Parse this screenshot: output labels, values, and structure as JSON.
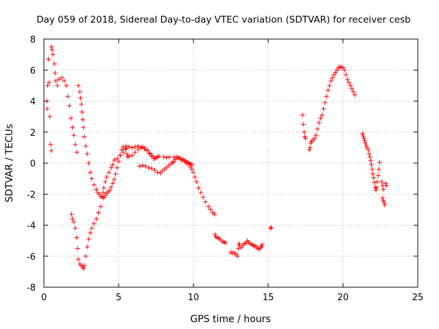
{
  "chart_data": {
    "type": "scatter",
    "title": "Day 059 of 2018, Sidereal Day-to-day VTEC variation (SDTVAR) for receiver cesb",
    "xlabel": "GPS time / hours",
    "ylabel": "SDTVAR / TECUs",
    "xlim": [
      0,
      25
    ],
    "ylim": [
      -8,
      8
    ],
    "xticks": [
      "0",
      "5",
      "10",
      "15",
      "20",
      "25"
    ],
    "yticks": [
      "-8",
      "-6",
      "-4",
      "-2",
      "0",
      "2",
      "4",
      "6",
      "8"
    ],
    "grid": true,
    "marker": "plus",
    "color": "#ff0000",
    "segments": [
      [
        [
          0.2,
          4.0
        ],
        [
          0.22,
          3.5
        ],
        [
          0.25,
          5.0
        ],
        [
          0.3,
          6.7
        ],
        [
          0.35,
          5.2
        ],
        [
          0.4,
          3.0
        ],
        [
          0.45,
          1.2
        ],
        [
          0.5,
          0.8
        ],
        [
          0.5,
          7.5
        ],
        [
          0.55,
          7.3
        ],
        [
          0.6,
          7.0
        ],
        [
          0.7,
          6.4
        ],
        [
          0.75,
          5.8
        ],
        [
          0.8,
          5.3
        ],
        [
          0.9,
          5.0
        ],
        [
          1.0,
          5.4
        ],
        [
          1.2,
          5.5
        ],
        [
          1.35,
          5.3
        ],
        [
          1.5,
          5.0
        ],
        [
          1.6,
          4.3
        ],
        [
          1.7,
          3.7
        ],
        [
          1.8,
          2.9
        ],
        [
          1.9,
          2.3
        ],
        [
          2.0,
          1.8
        ],
        [
          2.1,
          1.2
        ],
        [
          2.2,
          0.7
        ]
      ],
      [
        [
          1.85,
          -3.3
        ],
        [
          1.9,
          -3.6
        ],
        [
          2.0,
          -3.8
        ],
        [
          2.1,
          -4.2
        ],
        [
          2.2,
          -4.8
        ],
        [
          2.25,
          -5.5
        ],
        [
          2.3,
          -6.2
        ],
        [
          2.4,
          -6.5
        ],
        [
          2.5,
          -6.6
        ],
        [
          2.6,
          -6.7
        ],
        [
          2.65,
          -6.8
        ],
        [
          2.7,
          -6.6
        ],
        [
          2.8,
          -6.0
        ],
        [
          2.9,
          -5.4
        ],
        [
          3.0,
          -4.9
        ],
        [
          3.1,
          -4.5
        ],
        [
          3.2,
          -4.2
        ],
        [
          3.35,
          -3.9
        ],
        [
          3.5,
          -3.6
        ],
        [
          3.65,
          -3.2
        ],
        [
          3.8,
          -2.8
        ],
        [
          3.9,
          -2.2
        ],
        [
          3.95,
          -1.9
        ],
        [
          4.0,
          -1.6
        ],
        [
          4.1,
          -1.2
        ],
        [
          4.2,
          -0.9
        ],
        [
          4.35,
          -0.6
        ],
        [
          4.5,
          -0.3
        ],
        [
          4.6,
          -0.1
        ],
        [
          4.7,
          0.2
        ],
        [
          4.9,
          0.3
        ],
        [
          5.1,
          0.5
        ],
        [
          5.3,
          0.7
        ],
        [
          5.45,
          0.9
        ],
        [
          5.5,
          0.95
        ],
        [
          5.55,
          0.6
        ],
        [
          5.6,
          0.4
        ],
        [
          5.7,
          0.45
        ],
        [
          5.9,
          0.5
        ],
        [
          6.1,
          0.7
        ],
        [
          6.3,
          0.9
        ],
        [
          6.5,
          1.0
        ],
        [
          6.6,
          1.05
        ],
        [
          6.75,
          0.95
        ],
        [
          6.9,
          0.85
        ],
        [
          7.05,
          0.65
        ],
        [
          7.2,
          0.45
        ],
        [
          7.35,
          0.3
        ],
        [
          7.5,
          0.35
        ],
        [
          7.6,
          0.4
        ],
        [
          7.7,
          0.45
        ],
        [
          8.0,
          0.4
        ],
        [
          8.2,
          0.35
        ],
        [
          8.4,
          0.4
        ],
        [
          8.7,
          0.4
        ],
        [
          8.9,
          0.35
        ],
        [
          9.1,
          0.3
        ],
        [
          9.3,
          0.25
        ],
        [
          9.5,
          0.0
        ],
        [
          9.6,
          0.05
        ],
        [
          9.7,
          -0.1
        ],
        [
          9.8,
          -0.25
        ],
        [
          9.9,
          -0.4
        ],
        [
          10.0,
          -0.6
        ],
        [
          10.1,
          -0.9
        ],
        [
          10.2,
          -1.2
        ],
        [
          10.35,
          -1.6
        ],
        [
          10.5,
          -1.9
        ],
        [
          10.65,
          -2.2
        ],
        [
          10.8,
          -2.5
        ],
        [
          11.0,
          -2.8
        ],
        [
          11.15,
          -3.0
        ],
        [
          11.3,
          -3.2
        ],
        [
          11.4,
          -3.3
        ]
      ],
      [
        [
          2.3,
          5.0
        ],
        [
          2.4,
          4.6
        ],
        [
          2.45,
          4.2
        ],
        [
          2.5,
          3.8
        ],
        [
          2.55,
          3.3
        ],
        [
          2.6,
          2.8
        ],
        [
          2.65,
          2.3
        ],
        [
          2.7,
          1.7
        ],
        [
          2.8,
          1.1
        ],
        [
          2.9,
          0.6
        ],
        [
          3.0,
          0.0
        ],
        [
          3.1,
          -0.6
        ],
        [
          3.2,
          -1.0
        ],
        [
          3.35,
          -1.4
        ],
        [
          3.5,
          -1.7
        ],
        [
          3.6,
          -1.9
        ],
        [
          3.7,
          -2.0
        ],
        [
          3.8,
          -2.15
        ],
        [
          3.9,
          -2.2
        ],
        [
          4.0,
          -2.25
        ],
        [
          4.1,
          -2.1
        ],
        [
          4.2,
          -1.95
        ],
        [
          4.3,
          -1.85
        ],
        [
          4.4,
          -1.75
        ],
        [
          4.5,
          -1.55
        ],
        [
          4.6,
          -1.3
        ],
        [
          4.7,
          -1.05
        ],
        [
          4.8,
          -0.7
        ],
        [
          4.9,
          -0.3
        ],
        [
          5.0,
          0.1
        ],
        [
          5.1,
          0.5
        ],
        [
          5.2,
          0.85
        ],
        [
          5.3,
          1.05
        ],
        [
          5.5,
          1.1
        ],
        [
          5.7,
          1.05
        ],
        [
          5.9,
          1.0
        ],
        [
          6.1,
          1.05
        ],
        [
          6.3,
          1.1
        ],
        [
          6.5,
          1.0
        ],
        [
          6.7,
          0.95
        ],
        [
          6.9,
          0.8
        ],
        [
          7.1,
          0.6
        ],
        [
          7.25,
          0.45
        ],
        [
          7.4,
          0.3
        ]
      ],
      [
        [
          6.4,
          -0.2
        ],
        [
          6.6,
          -0.15
        ],
        [
          6.8,
          -0.2
        ],
        [
          7.0,
          -0.3
        ],
        [
          7.2,
          -0.35
        ],
        [
          7.4,
          -0.45
        ],
        [
          7.6,
          -0.6
        ],
        [
          7.8,
          -0.65
        ],
        [
          7.9,
          -0.5
        ],
        [
          8.05,
          -0.4
        ],
        [
          8.2,
          -0.3
        ],
        [
          8.35,
          -0.15
        ],
        [
          8.5,
          -0.05
        ],
        [
          8.6,
          0.05
        ],
        [
          8.7,
          0.1
        ],
        [
          8.8,
          0.25
        ],
        [
          8.9,
          0.4
        ],
        [
          9.0,
          0.35
        ],
        [
          9.1,
          0.3
        ],
        [
          9.2,
          0.2
        ],
        [
          9.3,
          0.2
        ],
        [
          9.4,
          0.15
        ],
        [
          9.5,
          0.1
        ],
        [
          9.6,
          0.05
        ],
        [
          9.7,
          0.0
        ],
        [
          9.8,
          -0.05
        ],
        [
          9.9,
          -0.1
        ]
      ],
      [
        [
          11.45,
          -4.6
        ],
        [
          11.5,
          -4.75
        ],
        [
          11.6,
          -4.8
        ],
        [
          11.7,
          -4.85
        ],
        [
          11.8,
          -4.95
        ],
        [
          11.95,
          -5.05
        ],
        [
          12.05,
          -5.1
        ],
        [
          12.15,
          -5.15
        ]
      ],
      [
        [
          12.5,
          -5.75
        ],
        [
          12.6,
          -5.8
        ],
        [
          12.75,
          -5.8
        ],
        [
          12.85,
          -5.9
        ],
        [
          12.95,
          -6.0
        ],
        [
          13.0,
          -5.5
        ],
        [
          13.05,
          -5.2
        ],
        [
          13.1,
          -5.3
        ],
        [
          13.2,
          -5.45
        ],
        [
          13.3,
          -5.3
        ],
        [
          13.4,
          -5.2
        ],
        [
          13.5,
          -5.15
        ],
        [
          13.6,
          -5.0
        ],
        [
          13.7,
          -5.1
        ],
        [
          13.8,
          -5.2
        ],
        [
          13.9,
          -5.25
        ],
        [
          14.0,
          -5.3
        ],
        [
          14.1,
          -5.35
        ],
        [
          14.2,
          -5.4
        ],
        [
          14.3,
          -5.5
        ],
        [
          14.4,
          -5.55
        ],
        [
          14.5,
          -5.45
        ],
        [
          14.55,
          -5.35
        ],
        [
          14.6,
          -5.25
        ]
      ],
      [
        [
          15.15,
          -4.2
        ],
        [
          15.2,
          -4.15
        ]
      ],
      [
        [
          17.3,
          3.1
        ],
        [
          17.35,
          2.5
        ],
        [
          17.4,
          2.0
        ],
        [
          17.45,
          1.7
        ],
        [
          17.5,
          1.6
        ]
      ],
      [
        [
          17.75,
          0.85
        ],
        [
          17.8,
          1.0
        ],
        [
          17.85,
          1.3
        ],
        [
          17.9,
          1.4
        ],
        [
          18.0,
          1.5
        ],
        [
          18.1,
          1.6
        ],
        [
          18.2,
          1.8
        ],
        [
          18.3,
          2.2
        ],
        [
          18.4,
          2.6
        ],
        [
          18.5,
          2.9
        ],
        [
          18.6,
          3.1
        ],
        [
          18.7,
          3.5
        ],
        [
          18.8,
          3.9
        ],
        [
          18.9,
          4.3
        ],
        [
          19.0,
          4.7
        ],
        [
          19.1,
          5.0
        ],
        [
          19.2,
          5.3
        ],
        [
          19.3,
          5.5
        ],
        [
          19.4,
          5.7
        ],
        [
          19.5,
          5.85
        ],
        [
          19.6,
          6.0
        ],
        [
          19.7,
          6.15
        ],
        [
          19.8,
          6.2
        ],
        [
          19.9,
          6.2
        ],
        [
          20.0,
          6.15
        ],
        [
          20.1,
          6.0
        ],
        [
          20.2,
          5.7
        ],
        [
          20.3,
          5.4
        ],
        [
          20.4,
          5.2
        ],
        [
          20.5,
          5.0
        ],
        [
          20.6,
          4.8
        ],
        [
          20.7,
          4.6
        ],
        [
          20.8,
          4.4
        ]
      ],
      [
        [
          21.3,
          1.9
        ],
        [
          21.35,
          1.75
        ],
        [
          21.4,
          1.6
        ],
        [
          21.45,
          1.45
        ],
        [
          21.5,
          1.3
        ],
        [
          21.55,
          1.15
        ],
        [
          21.6,
          1.0
        ],
        [
          21.7,
          0.85
        ],
        [
          21.75,
          0.6
        ],
        [
          21.8,
          0.4
        ],
        [
          21.85,
          0.15
        ],
        [
          21.9,
          -0.1
        ],
        [
          21.95,
          -0.4
        ],
        [
          22.0,
          -0.7
        ],
        [
          22.05,
          -0.95
        ],
        [
          22.1,
          -1.25
        ],
        [
          22.15,
          -1.55
        ],
        [
          22.2,
          -1.75
        ],
        [
          22.25,
          -1.6
        ],
        [
          22.3,
          -1.2
        ],
        [
          22.35,
          -0.8
        ],
        [
          22.4,
          -0.4
        ],
        [
          22.45,
          0.05
        ]
      ],
      [
        [
          22.6,
          -1.2
        ],
        [
          22.65,
          -1.45
        ],
        [
          22.7,
          -1.7
        ],
        [
          22.65,
          -2.25
        ],
        [
          22.7,
          -2.4
        ],
        [
          22.75,
          -2.55
        ],
        [
          22.8,
          -2.7
        ],
        [
          22.85,
          -1.3
        ],
        [
          22.9,
          -1.45
        ]
      ]
    ]
  }
}
